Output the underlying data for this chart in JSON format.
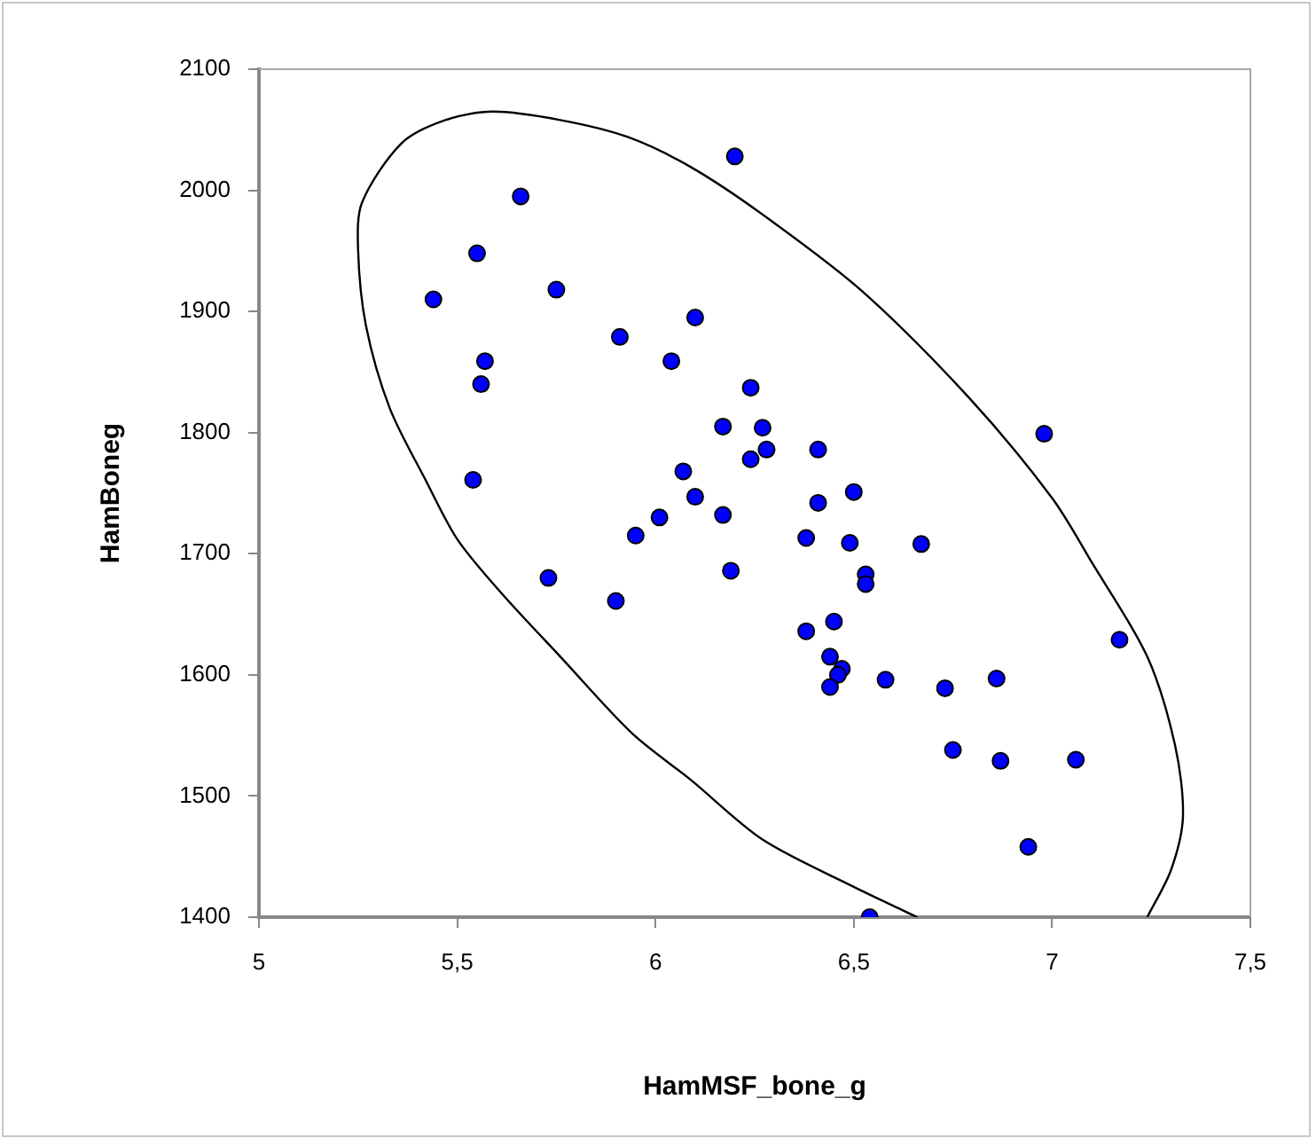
{
  "chart_data": {
    "type": "scatter",
    "xlabel": "HamMSF_bone_g",
    "ylabel": "HamBoneg",
    "xlim": [
      5,
      7.5
    ],
    "xticks": [
      5,
      {
        "value": 5.5,
        "label": "5,5"
      },
      6,
      {
        "value": 6.5,
        "label": "6,5"
      },
      7,
      {
        "value": 7.5,
        "label": "7,5"
      }
    ],
    "ylim": [
      1400,
      2100
    ],
    "yticks": [
      1400,
      1500,
      1600,
      1700,
      1800,
      1900,
      2000,
      2100
    ],
    "grid": false,
    "legend": false,
    "marker": "circle",
    "series": [
      {
        "color": "#0000ff",
        "x": [
          5.44,
          5.66,
          5.55,
          5.75,
          5.57,
          5.56,
          5.91,
          6.1,
          6.04,
          6.2,
          6.24,
          6.17,
          6.27,
          6.28,
          6.24,
          6.41,
          6.5,
          6.41,
          6.98,
          5.54,
          6.07,
          6.1,
          6.01,
          6.17,
          5.95,
          6.19,
          5.73,
          5.9,
          6.38,
          6.49,
          6.67,
          6.53,
          6.53,
          6.45,
          6.38,
          7.17,
          6.44,
          6.47,
          6.46,
          6.44,
          6.58,
          6.73,
          6.86,
          6.75,
          6.87,
          7.06,
          6.94,
          6.54
        ],
        "values": [
          1910,
          1995,
          1948,
          1918,
          1859,
          1840,
          1879,
          1895,
          1859,
          2028,
          1837,
          1805,
          1804,
          1786,
          1778,
          1786,
          1751,
          1742,
          1799,
          1761,
          1768,
          1747,
          1730,
          1732,
          1715,
          1686,
          1680,
          1661,
          1713,
          1709,
          1708,
          1683,
          1675,
          1644,
          1636,
          1629,
          1615,
          1605,
          1600,
          1590,
          1596,
          1589,
          1597,
          1538,
          1529,
          1530,
          1458,
          1400
        ]
      },
      {
        "type": "line",
        "color": "#000000",
        "marker": "none",
        "line_style": "solid",
        "x": [
          7.24,
          7.3,
          7.33,
          7.31,
          7.24,
          7.1,
          7.0,
          6.79,
          6.52,
          6.27,
          6.09,
          5.93,
          5.76,
          5.59,
          5.47,
          5.36,
          5.26,
          5.25,
          5.27,
          5.33,
          5.42,
          5.5,
          5.61,
          5.76,
          5.94,
          6.09,
          6.27,
          6.5,
          6.66
        ],
        "values": [
          1400,
          1439,
          1483,
          1542,
          1615,
          1693,
          1746,
          1829,
          1917,
          1980,
          2019,
          2044,
          2058,
          2065,
          2058,
          2039,
          1990,
          1951,
          1888,
          1820,
          1761,
          1712,
          1668,
          1615,
          1552,
          1513,
          1464,
          1425,
          1400
        ]
      }
    ]
  }
}
